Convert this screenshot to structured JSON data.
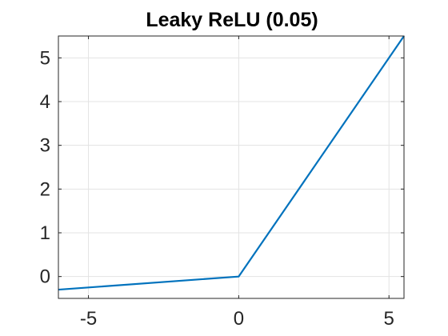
{
  "chart_data": {
    "type": "line",
    "title": "Leaky ReLU (0.05)",
    "xlabel": "",
    "ylabel": "",
    "xlim": [
      -6,
      5.5
    ],
    "ylim": [
      -0.5,
      5.5
    ],
    "xticks": [
      -5,
      0,
      5
    ],
    "xtick_labels": [
      "-5",
      "0",
      "5"
    ],
    "yticks": [
      0,
      1,
      2,
      3,
      4,
      5
    ],
    "ytick_labels": [
      "0",
      "1",
      "2",
      "3",
      "4",
      "5"
    ],
    "grid": true,
    "series": [
      {
        "color": "#0072BD",
        "x": [
          -6,
          0,
          5.5
        ],
        "y": [
          -0.3,
          0,
          5.5
        ]
      }
    ]
  }
}
